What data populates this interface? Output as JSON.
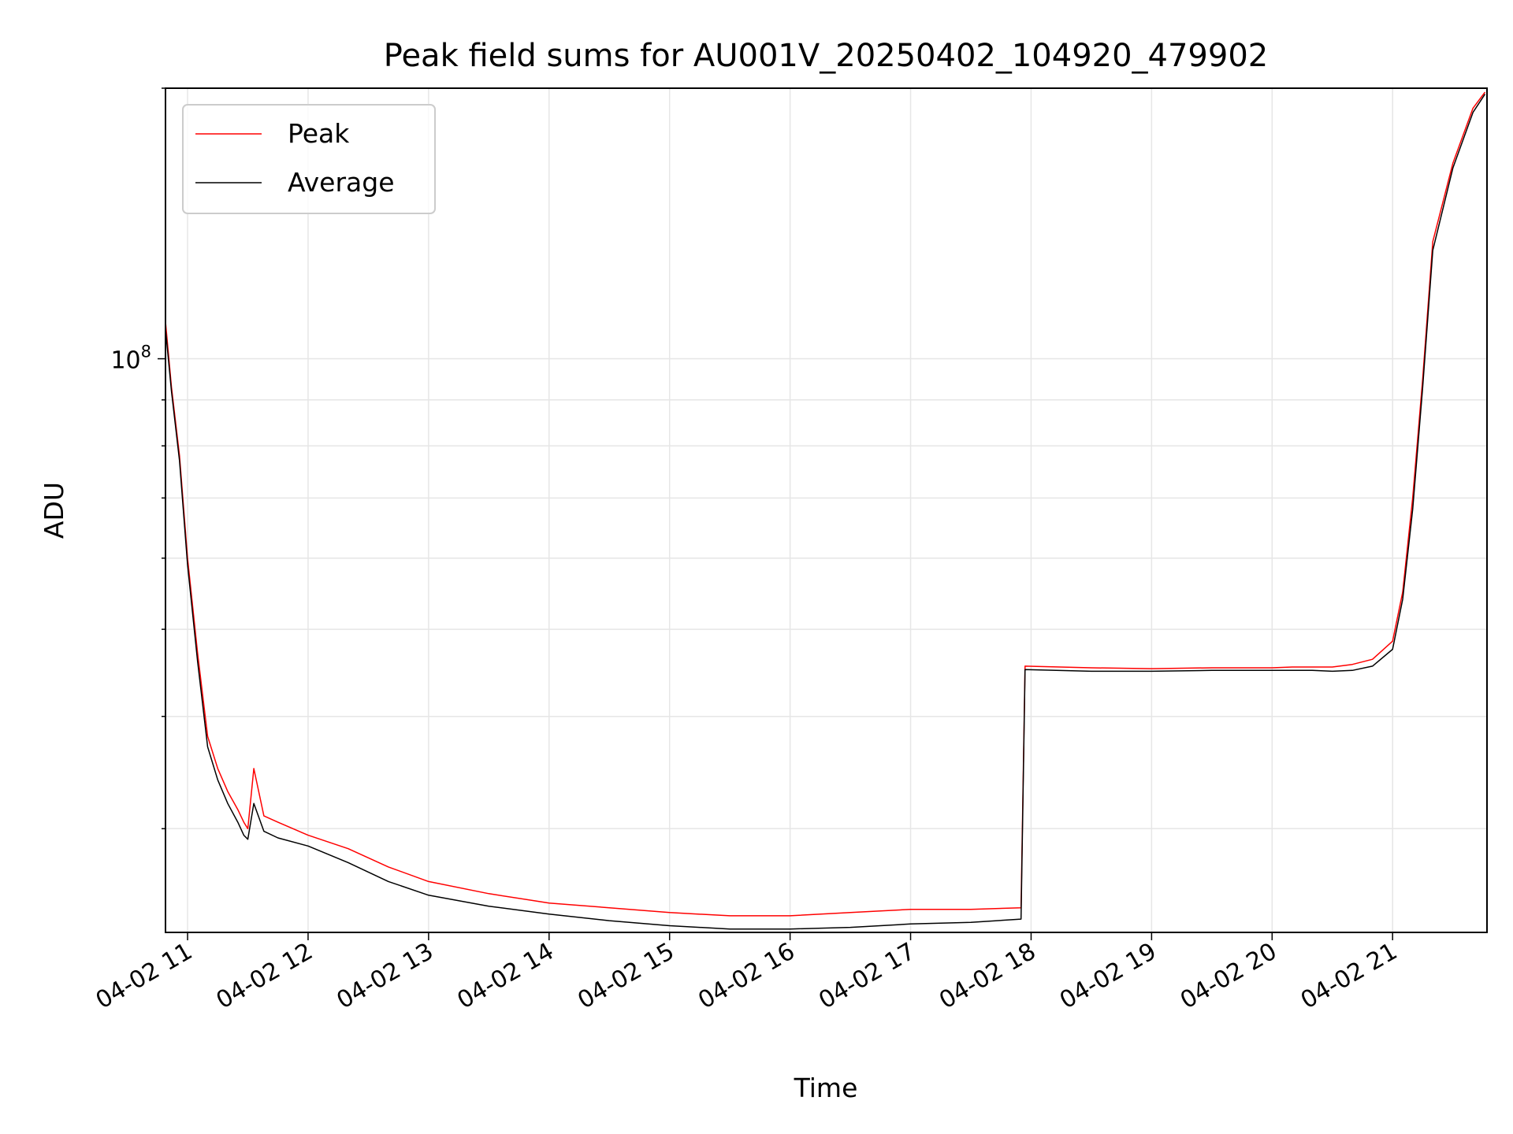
{
  "chart_data": {
    "type": "line",
    "title": "Peak field sums for AU001V_20250402_104920_479902",
    "xlabel": "Time",
    "ylabel": "ADU",
    "x_tick_labels": [
      "04-02 11",
      "04-02 12",
      "04-02 13",
      "04-02 14",
      "04-02 15",
      "04-02 16",
      "04-02 17",
      "04-02 18",
      "04-02 19",
      "04-02 20",
      "04-02 21"
    ],
    "y_major_tick_label": {
      "base": "10",
      "exponent": "8",
      "value": 100000000
    },
    "xlim": [
      "2025-04-02 10:49",
      "2025-04-02 21:47"
    ],
    "ylim": [
      23000000,
      200000000
    ],
    "yscale": "log",
    "grid": true,
    "legend_position": "top-left",
    "series": [
      {
        "name": "Peak",
        "color": "#ff0000",
        "x": [
          "2025-04-02 10:49",
          "2025-04-02 10:52",
          "2025-04-02 10:56",
          "2025-04-02 11:00",
          "2025-04-02 11:05",
          "2025-04-02 11:10",
          "2025-04-02 11:15",
          "2025-04-02 11:20",
          "2025-04-02 11:25",
          "2025-04-02 11:28",
          "2025-04-02 11:30",
          "2025-04-02 11:33",
          "2025-04-02 11:38",
          "2025-04-02 11:45",
          "2025-04-02 12:00",
          "2025-04-02 12:20",
          "2025-04-02 12:40",
          "2025-04-02 13:00",
          "2025-04-02 13:30",
          "2025-04-02 14:00",
          "2025-04-02 14:30",
          "2025-04-02 15:00",
          "2025-04-02 15:30",
          "2025-04-02 16:00",
          "2025-04-02 16:30",
          "2025-04-02 17:00",
          "2025-04-02 17:30",
          "2025-04-02 17:55",
          "2025-04-02 17:57",
          "2025-04-02 18:30",
          "2025-04-02 19:00",
          "2025-04-02 19:30",
          "2025-04-02 20:00",
          "2025-04-02 20:10",
          "2025-04-02 20:20",
          "2025-04-02 20:30",
          "2025-04-02 20:40",
          "2025-04-02 20:50",
          "2025-04-02 21:00",
          "2025-04-02 21:05",
          "2025-04-02 21:10",
          "2025-04-02 21:15",
          "2025-04-02 21:20",
          "2025-04-02 21:30",
          "2025-04-02 21:40",
          "2025-04-02 21:46"
        ],
        "values": [
          110000000,
          93000000,
          78000000,
          60000000,
          47000000,
          38000000,
          35000000,
          33000000,
          31500000,
          30500000,
          30000000,
          35000000,
          31000000,
          30500000,
          29500000,
          28500000,
          27200000,
          26200000,
          25400000,
          24800000,
          24500000,
          24200000,
          24000000,
          24000000,
          24200000,
          24400000,
          24400000,
          24500000,
          45500000,
          45300000,
          45200000,
          45300000,
          45300000,
          45400000,
          45400000,
          45400000,
          45700000,
          46300000,
          48500000,
          55000000,
          70000000,
          95000000,
          135000000,
          165000000,
          190000000,
          198000000
        ]
      },
      {
        "name": "Average",
        "color": "#000000",
        "x": [
          "2025-04-02 10:49",
          "2025-04-02 10:52",
          "2025-04-02 10:56",
          "2025-04-02 11:00",
          "2025-04-02 11:05",
          "2025-04-02 11:10",
          "2025-04-02 11:15",
          "2025-04-02 11:20",
          "2025-04-02 11:25",
          "2025-04-02 11:28",
          "2025-04-02 11:30",
          "2025-04-02 11:33",
          "2025-04-02 11:38",
          "2025-04-02 11:45",
          "2025-04-02 12:00",
          "2025-04-02 12:20",
          "2025-04-02 12:40",
          "2025-04-02 13:00",
          "2025-04-02 13:30",
          "2025-04-02 14:00",
          "2025-04-02 14:30",
          "2025-04-02 15:00",
          "2025-04-02 15:30",
          "2025-04-02 16:00",
          "2025-04-02 16:30",
          "2025-04-02 17:00",
          "2025-04-02 17:30",
          "2025-04-02 17:55",
          "2025-04-02 17:57",
          "2025-04-02 18:30",
          "2025-04-02 19:00",
          "2025-04-02 19:30",
          "2025-04-02 20:00",
          "2025-04-02 20:10",
          "2025-04-02 20:20",
          "2025-04-02 20:30",
          "2025-04-02 20:40",
          "2025-04-02 20:50",
          "2025-04-02 21:00",
          "2025-04-02 21:05",
          "2025-04-02 21:10",
          "2025-04-02 21:15",
          "2025-04-02 21:20",
          "2025-04-02 21:30",
          "2025-04-02 21:40",
          "2025-04-02 21:46"
        ],
        "values": [
          108000000,
          92000000,
          77000000,
          59000000,
          46000000,
          37000000,
          34000000,
          32000000,
          30500000,
          29500000,
          29200000,
          32000000,
          29800000,
          29300000,
          28700000,
          27500000,
          26200000,
          25300000,
          24600000,
          24100000,
          23700000,
          23400000,
          23200000,
          23200000,
          23300000,
          23500000,
          23600000,
          23800000,
          45100000,
          44900000,
          44900000,
          45000000,
          45000000,
          45000000,
          45000000,
          44900000,
          45000000,
          45500000,
          47500000,
          54000000,
          68000000,
          93000000,
          132000000,
          163000000,
          188000000,
          197000000
        ]
      }
    ]
  }
}
